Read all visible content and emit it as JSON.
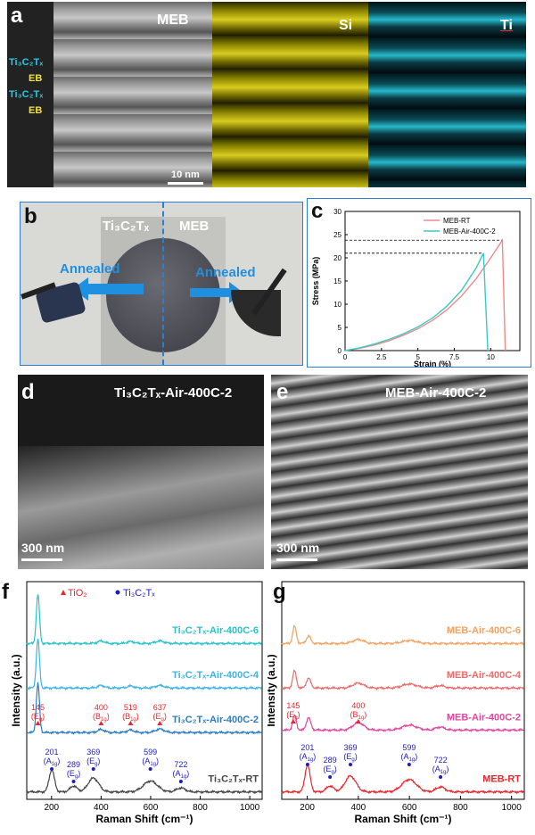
{
  "panels": {
    "a": {
      "label": "a",
      "titles": [
        "MEB",
        "Si",
        "Ti"
      ],
      "side_labels": [
        {
          "text": "Ti3C2Tx",
          "sub": [
            [
              "Ti",
              ""
            ],
            [
              "3",
              ""
            ],
            [
              "C",
              ""
            ],
            [
              "2",
              ""
            ],
            [
              "T",
              ""
            ],
            [
              "x",
              ""
            ]
          ]
        },
        {
          "text": "EB"
        },
        {
          "text": "Ti3C2Tx"
        },
        {
          "text": "EB"
        }
      ],
      "side_label_1": "Ti₃C₂Tₓ",
      "side_label_2": "EB",
      "side_label_3": "Ti₃C₂Tₓ",
      "side_label_4": "EB",
      "scale_bar": "10 nm"
    },
    "b": {
      "label": "b",
      "left_title": "Ti₃C₂Tₓ",
      "right_title": "MEB",
      "left_arrow": "Annealed",
      "right_arrow": "Annealed"
    },
    "c": {
      "label": "c"
    },
    "d": {
      "label": "d",
      "title": "Ti₃C₂Tₓ-Air-400C-2",
      "scale_bar": "300 nm"
    },
    "e": {
      "label": "e",
      "title": "MEB-Air-400C-2",
      "scale_bar": "300 nm"
    },
    "f": {
      "label": "f"
    },
    "g": {
      "label": "g"
    }
  },
  "colors": {
    "teal": "#27c2c9",
    "light_blue": "#3fb3e6",
    "dark_blue": "#2b7cc0",
    "dark_gray": "#444444",
    "red": "#e8262d",
    "orange": "#f4a15f",
    "salmon": "#ef6a6a",
    "pink": "#e3469f",
    "navy": "#1d1dbf"
  },
  "chart_data": [
    {
      "id": "c",
      "type": "line",
      "xlabel": "Strain (%)",
      "ylabel": "Stress (MPa)",
      "xlim": [
        0,
        12
      ],
      "ylim": [
        0,
        30
      ],
      "xticks": [
        0,
        2.5,
        5,
        7.5,
        10
      ],
      "xtick_labels": [
        "0",
        "2.5",
        "5",
        "7.5",
        "10"
      ],
      "yticks": [
        0,
        5,
        10,
        15,
        20,
        25,
        30
      ],
      "ytick_labels": [
        "0",
        "5",
        "10",
        "15",
        "20",
        "25",
        "30"
      ],
      "legend_position": "top-right",
      "series": [
        {
          "name": "MEB-RT",
          "color": "#f08a8a",
          "x": [
            0,
            1,
            2,
            3,
            4,
            5,
            6,
            7,
            8,
            9,
            10,
            10.8,
            11.0
          ],
          "y": [
            0,
            0.5,
            1.2,
            2.1,
            3.3,
            4.7,
            6.5,
            8.8,
            11.8,
            15.5,
            20.0,
            23.8,
            0
          ]
        },
        {
          "name": "MEB-Air-400C-2",
          "color": "#3cc9c4",
          "x": [
            0,
            1,
            2,
            3,
            4,
            5,
            6,
            7,
            8,
            9,
            9.5,
            9.8
          ],
          "y": [
            0,
            0.6,
            1.4,
            2.4,
            3.6,
            5.1,
            7.0,
            9.6,
            13.0,
            17.8,
            21.0,
            0
          ]
        }
      ],
      "reference_lines": [
        23.8,
        21.0
      ]
    },
    {
      "id": "f",
      "type": "line",
      "xlabel": "Raman Shift (cm⁻¹)",
      "ylabel": "Intensity (a.u.)",
      "xlim": [
        100,
        1050
      ],
      "xticks": [
        200,
        400,
        600,
        800,
        1000
      ],
      "xtick_labels": [
        "200",
        "400",
        "600",
        "800",
        "1000"
      ],
      "legend": [
        "TiO₂",
        "Ti₃C₂Tₓ"
      ],
      "series": [
        {
          "name": "Ti₃C₂Tₓ-Air-400C-6",
          "color": "#27c2c9",
          "offset": 3.0,
          "peaks": [
            [
              145,
              1.0,
              9
            ],
            [
              400,
              0.05,
              20
            ],
            [
              519,
              0.04,
              20
            ],
            [
              637,
              0.05,
              25
            ]
          ]
        },
        {
          "name": "Ti₃C₂Tₓ-Air-400C-4",
          "color": "#3fb3e6",
          "offset": 2.1,
          "peaks": [
            [
              145,
              1.0,
              9
            ],
            [
              400,
              0.05,
              20
            ],
            [
              519,
              0.04,
              20
            ],
            [
              637,
              0.05,
              25
            ]
          ]
        },
        {
          "name": "Ti₃C₂Tₓ-Air-400C-2",
          "color": "#2b7cc0",
          "offset": 1.2,
          "peaks": [
            [
              145,
              1.0,
              9
            ],
            [
              400,
              0.06,
              20
            ],
            [
              519,
              0.05,
              20
            ],
            [
              637,
              0.07,
              25
            ]
          ]
        },
        {
          "name": "Ti₃C₂Tₓ-RT",
          "color": "#444444",
          "offset": 0.0,
          "peaks": [
            [
              201,
              0.45,
              15
            ],
            [
              289,
              0.12,
              20
            ],
            [
              369,
              0.28,
              30
            ],
            [
              599,
              0.22,
              40
            ],
            [
              722,
              0.08,
              25
            ]
          ]
        }
      ],
      "annotations_tio2": [
        {
          "x": 145,
          "label": "145",
          "mode": "(E",
          "sub": "g",
          "mode_end": ")"
        },
        {
          "x": 400,
          "label": "400",
          "mode": "(B",
          "sub": "1g",
          "mode_end": ")"
        },
        {
          "x": 519,
          "label": "519",
          "mode": "(B",
          "sub": "1g",
          "mode_end": ")"
        },
        {
          "x": 637,
          "label": "637",
          "mode": "(E",
          "sub": "g",
          "mode_end": ")"
        }
      ],
      "annotations_ti3c2": [
        {
          "x": 201,
          "label": "201",
          "mode": "(A",
          "sub": "1g",
          "mode_end": ")"
        },
        {
          "x": 289,
          "label": "289",
          "mode": "(E",
          "sub": "g",
          "mode_end": ")"
        },
        {
          "x": 369,
          "label": "369",
          "mode": "(E",
          "sub": "g",
          "mode_end": ")"
        },
        {
          "x": 599,
          "label": "599",
          "mode": "(A",
          "sub": "1g",
          "mode_end": ")"
        },
        {
          "x": 722,
          "label": "722",
          "mode": "(A",
          "sub": "1g",
          "mode_end": ")"
        }
      ]
    },
    {
      "id": "g",
      "type": "line",
      "xlabel": "Raman Shift (cm⁻¹)",
      "ylabel": "Intensity (a.u.)",
      "xlim": [
        100,
        1050
      ],
      "xticks": [
        200,
        400,
        600,
        800,
        1000
      ],
      "xtick_labels": [
        "200",
        "400",
        "600",
        "800",
        "1000"
      ],
      "series": [
        {
          "name": "MEB-Air-400C-6",
          "color": "#f4a15f",
          "offset": 3.0,
          "peaks": [
            [
              150,
              0.35,
              10
            ],
            [
              205,
              0.15,
              12
            ],
            [
              400,
              0.08,
              30
            ],
            [
              600,
              0.06,
              40
            ]
          ]
        },
        {
          "name": "MEB-Air-400C-4",
          "color": "#ef6a6a",
          "offset": 2.1,
          "peaks": [
            [
              150,
              0.35,
              10
            ],
            [
              205,
              0.2,
              12
            ],
            [
              400,
              0.1,
              30
            ],
            [
              600,
              0.08,
              40
            ],
            [
              720,
              0.05,
              25
            ]
          ]
        },
        {
          "name": "MEB-Air-400C-2",
          "color": "#e3469f",
          "offset": 1.25,
          "peaks": [
            [
              150,
              0.3,
              10
            ],
            [
              205,
              0.25,
              12
            ],
            [
              400,
              0.15,
              30
            ],
            [
              600,
              0.1,
              40
            ],
            [
              720,
              0.06,
              25
            ]
          ]
        },
        {
          "name": "MEB-RT",
          "color": "#e8262d",
          "offset": 0.0,
          "peaks": [
            [
              201,
              0.55,
              14
            ],
            [
              289,
              0.12,
              20
            ],
            [
              369,
              0.32,
              30
            ],
            [
              599,
              0.25,
              40
            ],
            [
              722,
              0.1,
              25
            ]
          ]
        }
      ],
      "annotations_tio2": [
        {
          "x": 145,
          "label": "145",
          "mode": "(E",
          "sub": "g",
          "mode_end": ")"
        },
        {
          "x": 400,
          "label": "400",
          "mode": "(B",
          "sub": "1g",
          "mode_end": ")"
        }
      ],
      "annotations_ti3c2": [
        {
          "x": 201,
          "label": "201",
          "mode": "(A",
          "sub": "1g",
          "mode_end": ")"
        },
        {
          "x": 289,
          "label": "289",
          "mode": "(E",
          "sub": "g",
          "mode_end": ")"
        },
        {
          "x": 369,
          "label": "369",
          "mode": "(E",
          "sub": "g",
          "mode_end": ")"
        },
        {
          "x": 599,
          "label": "599",
          "mode": "(A",
          "sub": "1g",
          "mode_end": ")"
        },
        {
          "x": 722,
          "label": "722",
          "mode": "(A",
          "sub": "1g",
          "mode_end": ")"
        }
      ]
    }
  ]
}
